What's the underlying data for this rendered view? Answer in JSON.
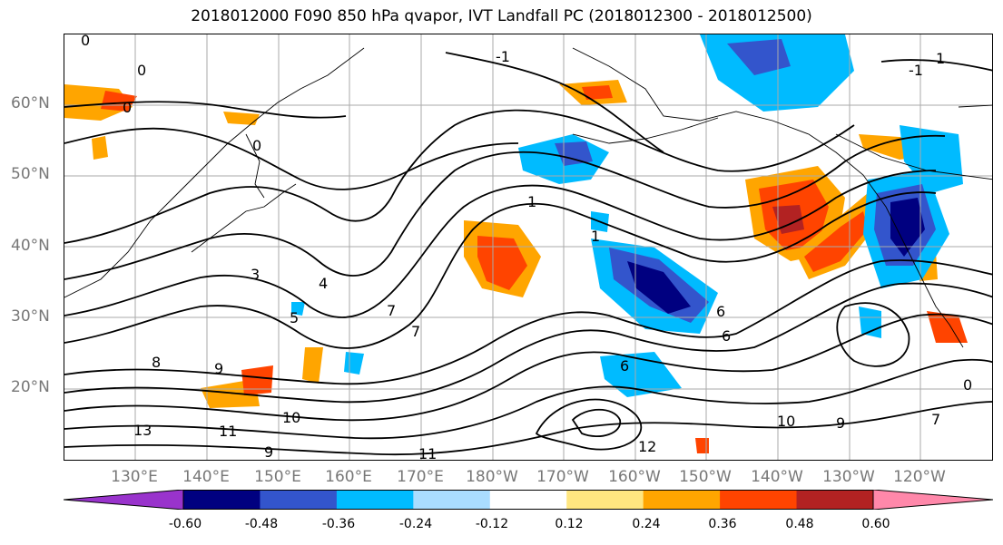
{
  "title": "2018012000 F090 850 hPa qvapor, IVT Landfall PC (2018012300 - 2018012500)",
  "lat_labels": [
    "60°N",
    "50°N",
    "40°N",
    "30°N",
    "20°N"
  ],
  "lon_labels": [
    "130°E",
    "140°E",
    "150°E",
    "160°E",
    "170°E",
    "180°W",
    "170°W",
    "160°W",
    "150°W",
    "140°W",
    "130°W",
    "120°W"
  ],
  "contour_labels": [
    "0",
    "0",
    "0",
    "0",
    "-1",
    "1",
    "-1",
    "1",
    "1",
    "3",
    "4",
    "5",
    "7",
    "7",
    "8",
    "9",
    "10",
    "11",
    "12",
    "13",
    "11",
    "9",
    "10",
    "9",
    "7",
    "6",
    "6",
    "6",
    "0"
  ],
  "colorbar": {
    "colors": [
      "#9933cc",
      "#000080",
      "#3355cc",
      "#00bbff",
      "#aaddff",
      "#ffffff",
      "#ffe680",
      "#ffa500",
      "#ff4400",
      "#b22222",
      "#ff88aa"
    ],
    "tick_labels": [
      "-0.60",
      "-0.48",
      "-0.36",
      "-0.24",
      "-0.12",
      "0.12",
      "0.24",
      "0.36",
      "0.48",
      "0.60"
    ]
  }
}
